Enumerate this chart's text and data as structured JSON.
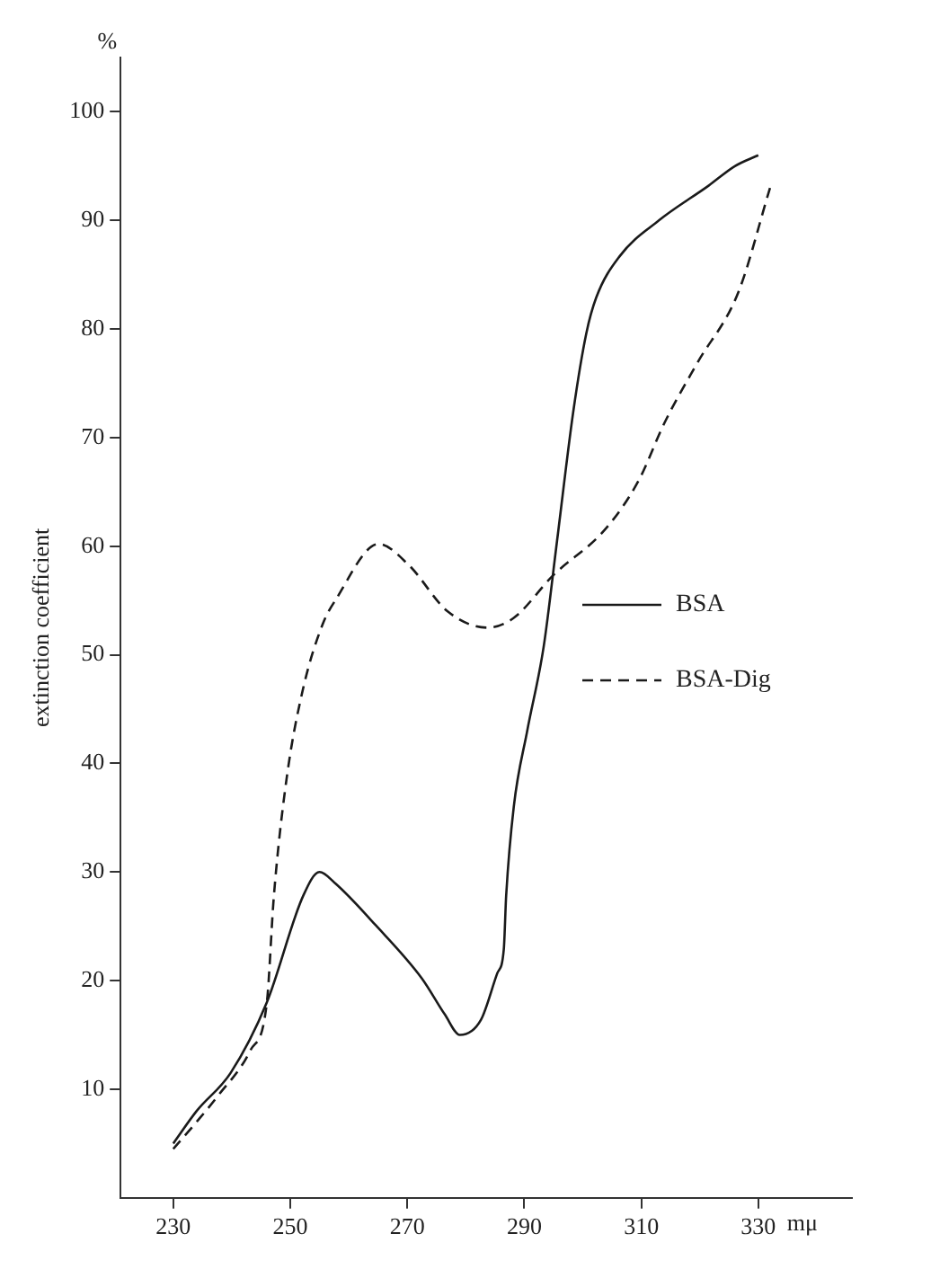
{
  "chart_data": {
    "type": "line",
    "xlabel": "mμ",
    "ylabel": "extinction coefficient",
    "annotations": [
      "%"
    ],
    "xlim": [
      221,
      346
    ],
    "ylim": [
      0,
      105
    ],
    "xticks": [
      230,
      250,
      270,
      290,
      310,
      330
    ],
    "yticks": [
      10,
      20,
      30,
      40,
      50,
      60,
      70,
      80,
      90,
      100
    ],
    "grid": false,
    "legend": "right",
    "marker": "none",
    "series": [
      {
        "name": "BSA",
        "color": "#1a1a1a",
        "line_style": "solid",
        "x": [
          230,
          234,
          239.8,
          246,
          252.2,
          255,
          257.8,
          264.6,
          272.5,
          276.4,
          279,
          282.6,
          285.4,
          286.5,
          286.9,
          288.2,
          290.5,
          293.3,
          295.6,
          298.4,
          300.6,
          302.3,
          306.3,
          313,
          321.5,
          326,
          330
        ],
        "values": [
          5,
          8,
          11.5,
          18,
          27.8,
          30,
          28.9,
          25.1,
          20.2,
          16.9,
          15,
          16.4,
          20.7,
          22.9,
          27.8,
          36,
          43,
          50.7,
          60.5,
          72.5,
          79.6,
          82.9,
          86.7,
          90,
          93.2,
          95,
          96
        ]
      },
      {
        "name": "BSA-Dig",
        "color": "#1a1a1a",
        "line_style": "dashed",
        "x": [
          230,
          234,
          237.5,
          243.2,
          246,
          247.2,
          249.4,
          252.2,
          255.6,
          257.8,
          265.1,
          270.2,
          276.9,
          283.7,
          288.2,
          294.9,
          303.9,
          309.5,
          314,
          319.6,
          326.6,
          332
        ],
        "values": [
          4.5,
          7,
          9.3,
          13.6,
          18,
          27.8,
          38.7,
          46.9,
          52.9,
          55.1,
          60.2,
          58.3,
          54,
          52.5,
          53.4,
          57.3,
          61.6,
          66,
          71.4,
          76.9,
          83.4,
          93
        ]
      }
    ]
  }
}
